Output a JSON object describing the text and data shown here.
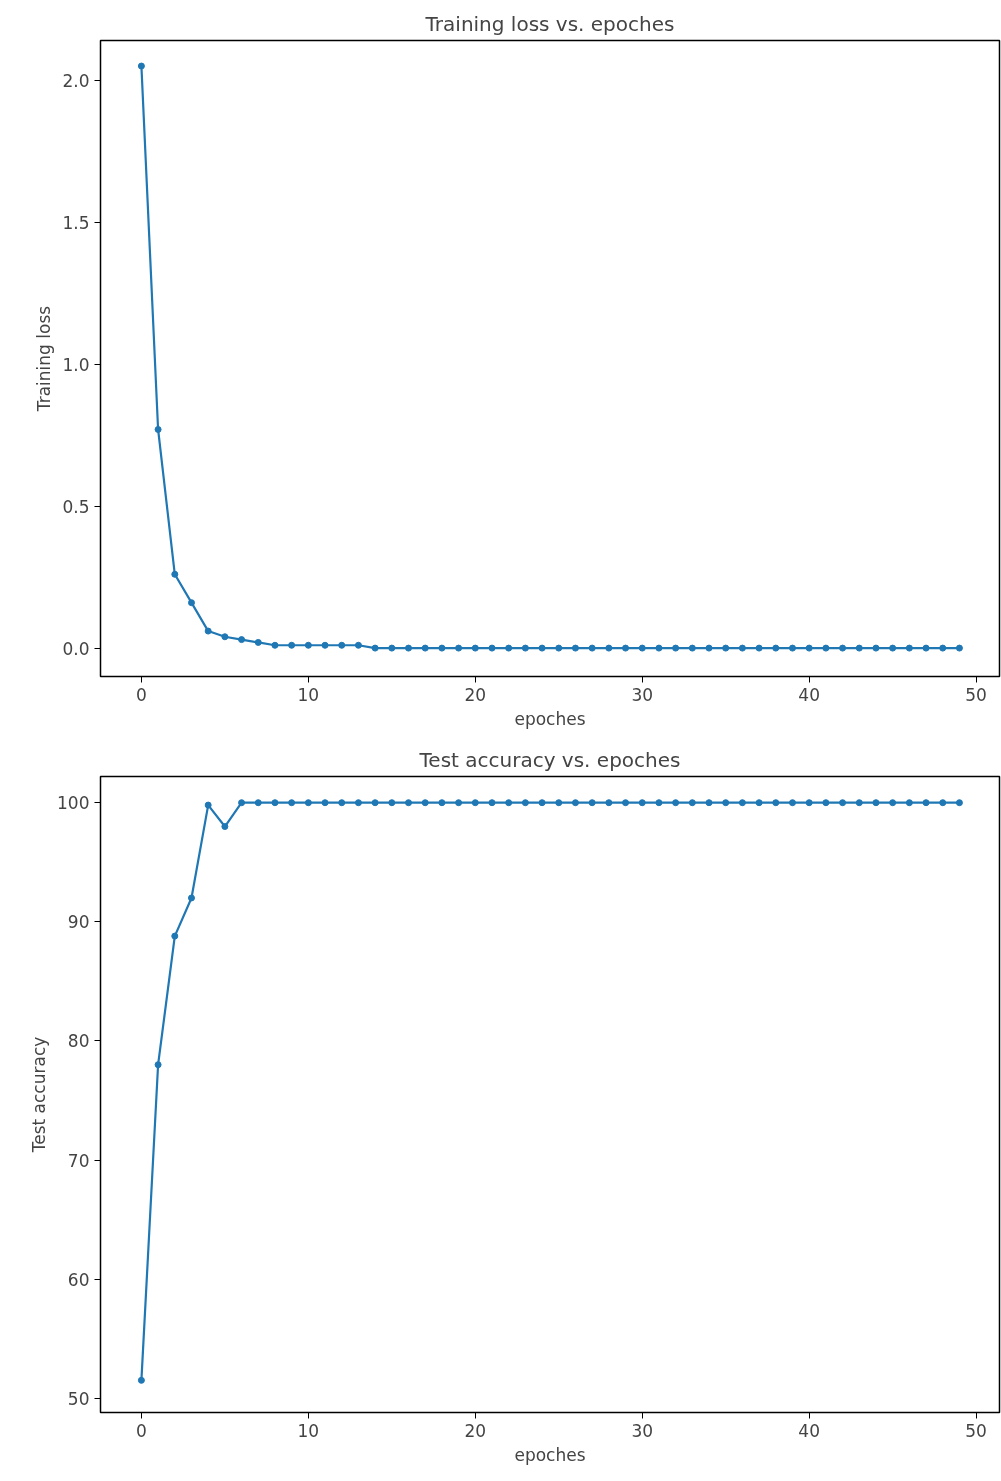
{
  "chart_data": [
    {
      "type": "line",
      "title": "Training loss vs. epoches",
      "xlabel": "epoches",
      "ylabel": "Training loss",
      "x": [
        0,
        1,
        2,
        3,
        4,
        5,
        6,
        7,
        8,
        9,
        10,
        11,
        12,
        13,
        14,
        15,
        16,
        17,
        18,
        19,
        20,
        21,
        22,
        23,
        24,
        25,
        26,
        27,
        28,
        29,
        30,
        31,
        32,
        33,
        34,
        35,
        36,
        37,
        38,
        39,
        40,
        41,
        42,
        43,
        44,
        45,
        46,
        47,
        48,
        49
      ],
      "series": [
        {
          "color": "#1f77b4",
          "values": [
            2.05,
            0.77,
            0.26,
            0.16,
            0.06,
            0.04,
            0.03,
            0.02,
            0.01,
            0.01,
            0.01,
            0.01,
            0.01,
            0.01,
            0,
            0,
            0,
            0,
            0,
            0,
            0,
            0,
            0,
            0,
            0,
            0,
            0,
            0,
            0,
            0,
            0,
            0,
            0,
            0,
            0,
            0,
            0,
            0,
            0,
            0,
            0,
            0,
            0,
            0,
            0,
            0,
            0,
            0,
            0,
            0
          ]
        }
      ],
      "xlim": [
        -2.45,
        51.4
      ],
      "ylim": [
        -0.1,
        2.14
      ],
      "xticks": [
        0,
        10,
        20,
        30,
        40,
        50
      ],
      "yticks": [
        {
          "value": 0,
          "label": "0.0"
        },
        0.5,
        {
          "value": 1,
          "label": "1.0"
        },
        1.5,
        {
          "value": 2,
          "label": "2.0"
        }
      ],
      "grid": false,
      "marker": "circle",
      "line_style": "solid"
    },
    {
      "type": "line",
      "title": "Test accuracy vs. epoches",
      "xlabel": "epoches",
      "ylabel": "Test accuracy",
      "x": [
        0,
        1,
        2,
        3,
        4,
        5,
        6,
        7,
        8,
        9,
        10,
        11,
        12,
        13,
        14,
        15,
        16,
        17,
        18,
        19,
        20,
        21,
        22,
        23,
        24,
        25,
        26,
        27,
        28,
        29,
        30,
        31,
        32,
        33,
        34,
        35,
        36,
        37,
        38,
        39,
        40,
        41,
        42,
        43,
        44,
        45,
        46,
        47,
        48,
        49
      ],
      "series": [
        {
          "color": "#1f77b4",
          "values": [
            51.5,
            78,
            88.8,
            92,
            99.8,
            98,
            100,
            100,
            100,
            100,
            100,
            100,
            100,
            100,
            100,
            100,
            100,
            100,
            100,
            100,
            100,
            100,
            100,
            100,
            100,
            100,
            100,
            100,
            100,
            100,
            100,
            100,
            100,
            100,
            100,
            100,
            100,
            100,
            100,
            100,
            100,
            100,
            100,
            100,
            100,
            100,
            100,
            100,
            100,
            100
          ]
        }
      ],
      "xlim": [
        -2.45,
        51.4
      ],
      "ylim": [
        48.8,
        102.2
      ],
      "xticks": [
        0,
        10,
        20,
        30,
        40,
        50
      ],
      "yticks": [
        50,
        60,
        70,
        80,
        90,
        100
      ],
      "grid": false,
      "marker": "circle",
      "line_style": "solid"
    }
  ]
}
